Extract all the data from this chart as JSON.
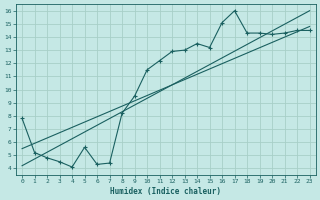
{
  "xlabel": "Humidex (Indice chaleur)",
  "ylabel": "",
  "bg_color": "#c5e8e5",
  "grid_color": "#a8cfc8",
  "line_color": "#1a6060",
  "xlim": [
    -0.5,
    23.5
  ],
  "ylim": [
    3.5,
    16.5
  ],
  "xticks": [
    0,
    1,
    2,
    3,
    4,
    5,
    6,
    7,
    8,
    9,
    10,
    11,
    12,
    13,
    14,
    15,
    16,
    17,
    18,
    19,
    20,
    21,
    22,
    23
  ],
  "yticks": [
    4,
    5,
    6,
    7,
    8,
    9,
    10,
    11,
    12,
    13,
    14,
    15,
    16
  ],
  "line1_x": [
    0,
    1,
    2,
    3,
    4,
    5,
    6,
    7,
    8,
    9,
    10,
    11,
    12,
    13,
    14,
    15,
    16,
    17,
    18,
    19,
    20,
    21,
    22,
    23
  ],
  "line1_y": [
    7.8,
    5.2,
    4.8,
    4.5,
    4.1,
    5.6,
    4.3,
    4.4,
    8.2,
    9.5,
    11.5,
    12.2,
    12.9,
    13.0,
    13.5,
    13.2,
    15.1,
    16.0,
    14.3,
    14.3,
    14.2,
    14.3,
    14.5,
    14.5
  ],
  "line2_x": [
    0,
    23
  ],
  "line2_y": [
    4.2,
    16.0
  ],
  "line3_x": [
    0,
    23
  ],
  "line3_y": [
    5.5,
    14.8
  ]
}
